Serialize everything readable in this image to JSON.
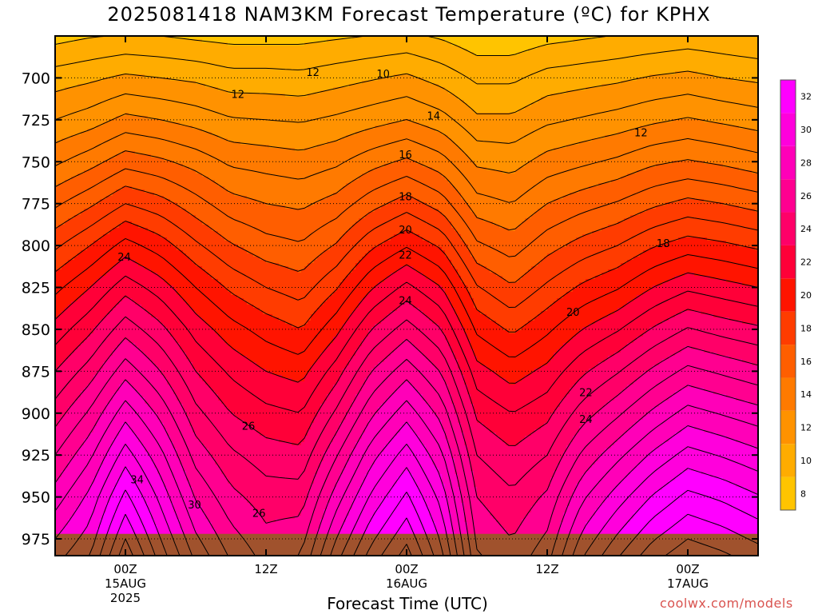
{
  "title": "2025081418 NAM3KM Forecast Temperature (ºC) for KPHX",
  "credit": "coolwx.com/models",
  "chart_data": {
    "type": "heatmap",
    "xlabel": "Forecast Time (UTC)",
    "ylabel": "",
    "x_range_hours": [
      -6,
      54
    ],
    "y_range_hPa": [
      675,
      985
    ],
    "y_ticks": [
      {
        "value": 700,
        "label": "700"
      },
      {
        "value": 725,
        "label": "725"
      },
      {
        "value": 750,
        "label": "750"
      },
      {
        "value": 775,
        "label": "775"
      },
      {
        "value": 800,
        "label": "800"
      },
      {
        "value": 825,
        "label": "825"
      },
      {
        "value": 850,
        "label": "850"
      },
      {
        "value": 875,
        "label": "875"
      },
      {
        "value": 900,
        "label": "900"
      },
      {
        "value": 925,
        "label": "925"
      },
      {
        "value": 950,
        "label": "950"
      },
      {
        "value": 975,
        "label": "975"
      }
    ],
    "x_ticks": [
      {
        "hour": 0,
        "lines": [
          "00Z",
          "15AUG",
          "2025"
        ]
      },
      {
        "hour": 12,
        "lines": [
          "12Z"
        ]
      },
      {
        "hour": 24,
        "lines": [
          "00Z",
          "16AUG"
        ]
      },
      {
        "hour": 36,
        "lines": [
          "12Z"
        ]
      },
      {
        "hour": 48,
        "lines": [
          "00Z",
          "17AUG"
        ]
      }
    ],
    "dotted_gridlines_hPa": [
      700,
      725,
      750,
      775,
      800,
      825,
      850,
      875,
      900,
      925,
      950,
      975
    ],
    "surface_pressure_hPa": 972,
    "profiles": [
      {
        "hour": -6,
        "T": {
          "680": 10.0,
          "700": 11.5,
          "725": 13.0,
          "750": 14.8,
          "775": 16.8,
          "800": 18.8,
          "825": 20.7,
          "850": 22.4,
          "875": 24.0,
          "900": 25.5,
          "925": 27.0,
          "950": 28.5,
          "975": 30.0
        }
      },
      {
        "hour": -3,
        "T": {
          "680": 10.3,
          "700": 11.8,
          "725": 13.5,
          "750": 15.6,
          "775": 17.8,
          "800": 20.0,
          "825": 22.0,
          "850": 23.8,
          "875": 25.5,
          "900": 27.2,
          "925": 28.8,
          "950": 30.3,
          "975": 31.5
        }
      },
      {
        "hour": 0,
        "T": {
          "680": 10.5,
          "700": 12.2,
          "725": 14.3,
          "750": 16.6,
          "775": 19.0,
          "800": 21.4,
          "825": 23.6,
          "850": 25.6,
          "875": 27.6,
          "900": 29.6,
          "925": 31.5,
          "950": 33.3,
          "975": 35.0
        }
      },
      {
        "hour": 3,
        "T": {
          "680": 10.4,
          "700": 12.0,
          "725": 14.0,
          "750": 16.2,
          "775": 18.4,
          "800": 20.5,
          "825": 22.5,
          "850": 24.3,
          "875": 26.0,
          "900": 27.7,
          "925": 29.3,
          "950": 30.7,
          "975": 32.0
        }
      },
      {
        "hour": 6,
        "T": {
          "680": 10.2,
          "700": 11.8,
          "725": 13.6,
          "750": 15.6,
          "775": 17.4,
          "800": 19.2,
          "825": 21.0,
          "850": 22.6,
          "875": 24.0,
          "900": 25.3,
          "925": 26.6,
          "950": 27.9,
          "975": 29.2
        }
      },
      {
        "hour": 9,
        "T": {
          "680": 10.0,
          "700": 11.4,
          "725": 13.1,
          "750": 14.8,
          "775": 16.4,
          "800": 18.1,
          "825": 19.8,
          "850": 21.4,
          "875": 22.8,
          "900": 24.0,
          "925": 25.2,
          "950": 26.3,
          "975": 27.4
        }
      },
      {
        "hour": 12,
        "T": {
          "680": 10.0,
          "700": 11.4,
          "725": 13.0,
          "750": 14.6,
          "775": 16.0,
          "800": 17.4,
          "825": 19.0,
          "850": 20.6,
          "875": 22.0,
          "900": 23.3,
          "925": 24.5,
          "950": 25.5,
          "975": 26.3
        }
      },
      {
        "hour": 15,
        "T": {
          "680": 10.0,
          "700": 11.3,
          "725": 12.9,
          "750": 14.4,
          "775": 15.8,
          "800": 17.1,
          "825": 18.5,
          "850": 20.0,
          "875": 21.6,
          "900": 23.0,
          "925": 24.3,
          "950": 25.5,
          "975": 26.6
        }
      },
      {
        "hour": 18,
        "T": {
          "680": 10.2,
          "700": 11.6,
          "725": 13.2,
          "750": 14.8,
          "775": 16.4,
          "800": 18.1,
          "825": 19.9,
          "850": 21.7,
          "875": 23.5,
          "900": 25.2,
          "925": 26.9,
          "950": 28.5,
          "975": 30.0
        }
      },
      {
        "hour": 21,
        "T": {
          "680": 10.4,
          "700": 11.9,
          "725": 13.6,
          "750": 15.6,
          "775": 17.6,
          "800": 19.8,
          "825": 21.9,
          "850": 24.0,
          "875": 26.0,
          "900": 27.8,
          "925": 29.6,
          "950": 31.2,
          "975": 32.8
        }
      },
      {
        "hour": 24,
        "T": {
          "680": 10.6,
          "700": 12.2,
          "725": 14.0,
          "750": 16.2,
          "775": 18.5,
          "800": 20.9,
          "825": 23.3,
          "850": 25.5,
          "875": 27.6,
          "900": 29.6,
          "925": 31.5,
          "950": 33.2,
          "975": 34.8
        }
      },
      {
        "hour": 27,
        "T": {
          "680": 10.2,
          "700": 11.6,
          "725": 13.4,
          "750": 15.4,
          "775": 17.5,
          "800": 19.8,
          "825": 22.0,
          "850": 24.0,
          "875": 25.9,
          "900": 27.6,
          "925": 29.2,
          "950": 30.6,
          "975": 31.8
        }
      },
      {
        "hour": 30,
        "T": {
          "680": 9.6,
          "700": 10.8,
          "725": 12.2,
          "750": 13.8,
          "775": 15.4,
          "800": 17.2,
          "825": 19.1,
          "850": 20.8,
          "875": 22.4,
          "900": 23.8,
          "925": 25.0,
          "950": 26.0,
          "975": 26.8
        }
      },
      {
        "hour": 33,
        "T": {
          "680": 9.6,
          "700": 10.8,
          "725": 12.2,
          "750": 13.6,
          "775": 15.0,
          "800": 16.5,
          "825": 18.1,
          "850": 19.8,
          "875": 21.5,
          "900": 23.0,
          "925": 24.2,
          "950": 25.2,
          "975": 26.0
        }
      },
      {
        "hour": 36,
        "T": {
          "680": 10.0,
          "700": 11.4,
          "725": 12.8,
          "750": 14.4,
          "775": 16.0,
          "800": 17.6,
          "825": 19.2,
          "850": 20.8,
          "875": 22.3,
          "900": 23.7,
          "925": 25.0,
          "950": 26.2,
          "975": 27.2
        }
      },
      {
        "hour": 39,
        "T": {
          "680": 10.2,
          "700": 11.6,
          "725": 13.1,
          "750": 14.8,
          "775": 16.6,
          "800": 18.4,
          "825": 20.2,
          "850": 22.0,
          "875": 23.8,
          "900": 25.5,
          "925": 27.2,
          "950": 28.8,
          "975": 30.3
        }
      },
      {
        "hour": 42,
        "T": {
          "680": 10.4,
          "700": 11.8,
          "725": 13.4,
          "750": 15.2,
          "775": 17.1,
          "800": 19.0,
          "825": 20.9,
          "850": 22.9,
          "875": 24.9,
          "900": 26.8,
          "925": 28.7,
          "950": 30.5,
          "975": 32.2
        }
      },
      {
        "hour": 45,
        "T": {
          "680": 10.6,
          "700": 12.1,
          "725": 13.8,
          "750": 15.8,
          "775": 17.8,
          "800": 19.9,
          "825": 22.0,
          "850": 24.1,
          "875": 26.2,
          "900": 28.2,
          "925": 30.2,
          "950": 32.1,
          "975": 33.9
        }
      },
      {
        "hour": 48,
        "T": {
          "680": 10.8,
          "700": 12.3,
          "725": 14.1,
          "750": 16.1,
          "775": 18.3,
          "800": 20.5,
          "825": 22.8,
          "850": 25.1,
          "875": 27.3,
          "900": 29.4,
          "925": 31.4,
          "950": 33.3,
          "975": 35.0
        }
      },
      {
        "hour": 51,
        "T": {
          "680": 10.6,
          "700": 12.0,
          "725": 13.8,
          "750": 15.8,
          "775": 18.0,
          "800": 20.2,
          "825": 22.4,
          "850": 24.6,
          "875": 26.8,
          "900": 28.9,
          "925": 30.9,
          "950": 32.8,
          "975": 34.5
        }
      },
      {
        "hour": 54,
        "T": {
          "680": 10.4,
          "700": 11.8,
          "725": 13.5,
          "750": 15.4,
          "775": 17.6,
          "800": 19.8,
          "825": 22.0,
          "850": 24.2,
          "875": 26.3,
          "900": 28.4,
          "925": 30.3,
          "950": 32.1,
          "975": 33.8
        }
      }
    ],
    "contour_interval": 1,
    "contour_labels": [
      {
        "text": "10",
        "hour": 22.0,
        "hPa": 698
      },
      {
        "text": "12",
        "hour": 9.6,
        "hPa": 710
      },
      {
        "text": "12",
        "hour": 16.0,
        "hPa": 697
      },
      {
        "text": "12",
        "hour": 44.0,
        "hPa": 733
      },
      {
        "text": "14",
        "hour": 26.3,
        "hPa": 723
      },
      {
        "text": "16",
        "hour": 23.9,
        "hPa": 746
      },
      {
        "text": "18",
        "hour": 23.9,
        "hPa": 771
      },
      {
        "text": "18",
        "hour": 45.9,
        "hPa": 799
      },
      {
        "text": "20",
        "hour": 23.9,
        "hPa": 791
      },
      {
        "text": "20",
        "hour": 38.2,
        "hPa": 840
      },
      {
        "text": "22",
        "hour": 23.9,
        "hPa": 806
      },
      {
        "text": "22",
        "hour": 39.3,
        "hPa": 888
      },
      {
        "text": "24",
        "hour": -0.1,
        "hPa": 807
      },
      {
        "text": "24",
        "hour": 23.9,
        "hPa": 833
      },
      {
        "text": "24",
        "hour": 39.3,
        "hPa": 904
      },
      {
        "text": "26",
        "hour": 10.5,
        "hPa": 908
      },
      {
        "text": "26",
        "hour": 11.4,
        "hPa": 960
      },
      {
        "text": "30",
        "hour": 5.9,
        "hPa": 955
      },
      {
        "text": "34",
        "hour": 1.0,
        "hPa": 940
      }
    ],
    "colorbar": {
      "levels": [
        8,
        10,
        12,
        14,
        16,
        18,
        20,
        22,
        24,
        26,
        28,
        30,
        32
      ],
      "colors": [
        "#ffc400",
        "#ffac00",
        "#ff9200",
        "#ff7a00",
        "#ff5e00",
        "#ff3c00",
        "#ff1400",
        "#ff0038",
        "#ff0068",
        "#ff0090",
        "#ff00b8",
        "#ff00dc",
        "#ff00ff"
      ]
    },
    "surface_color": "#a0522d",
    "background_color": "#ffffff",
    "grid": true
  }
}
